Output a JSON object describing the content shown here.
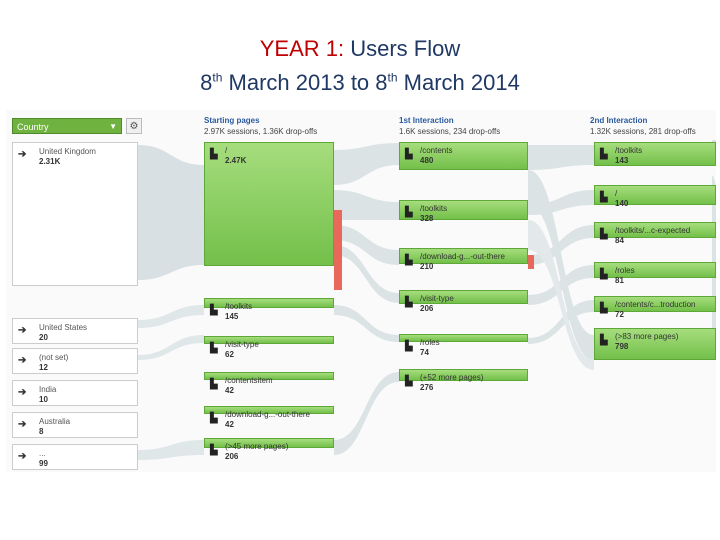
{
  "slide": {
    "line1_year": "YEAR 1:",
    "line1_rest": "Users Flow",
    "line2_a": "8",
    "line2_sup1": "th",
    "line2_b": "March 2013 to 8",
    "line2_sup2": "th",
    "line2_c": "March 2014"
  },
  "controls": {
    "dimension": "Country",
    "caret": "▼",
    "gear": "⚙"
  },
  "columns": [
    {
      "title": "Starting pages",
      "sub": "2.97K sessions, 1.36K drop-offs"
    },
    {
      "title": "1st Interaction",
      "sub": "1.6K sessions, 234 drop-offs"
    },
    {
      "title": "2nd Interaction",
      "sub": "1.32K sessions, 281 drop-offs"
    }
  ],
  "countries": [
    {
      "name": "United Kingdom",
      "value": "2.31K"
    },
    {
      "name": "United States",
      "value": "20"
    },
    {
      "name": "(not set)",
      "value": "12"
    },
    {
      "name": "India",
      "value": "10"
    },
    {
      "name": "Australia",
      "value": "8"
    },
    {
      "name": "...",
      "value": "99"
    }
  ],
  "starting_pages": [
    {
      "name": "/",
      "value": "2.47K"
    },
    {
      "name": "/toolkits",
      "value": "145"
    },
    {
      "name": "/visit-type",
      "value": "62"
    },
    {
      "name": "/contentsitem",
      "value": "42"
    },
    {
      "name": "/download-g...-out-there",
      "value": "42"
    },
    {
      "name": "(>45 more pages)",
      "value": "206"
    }
  ],
  "first_interaction": [
    {
      "name": "/contents",
      "value": "480"
    },
    {
      "name": "/toolkits",
      "value": "328"
    },
    {
      "name": "/download-g...-out-there",
      "value": "210"
    },
    {
      "name": "/visit-type",
      "value": "206"
    },
    {
      "name": "/roles",
      "value": "74"
    },
    {
      "name": "(+52 more pages)",
      "value": "276"
    }
  ],
  "second_interaction": [
    {
      "name": "/toolkits",
      "value": "143"
    },
    {
      "name": "/",
      "value": "140"
    },
    {
      "name": "/toolkits/...c-expected",
      "value": "84"
    },
    {
      "name": "/roles",
      "value": "81"
    },
    {
      "name": "/contents/c...troduction",
      "value": "72"
    },
    {
      "name": "(>83 more pages)",
      "value": "798"
    }
  ],
  "icons": {
    "arrow": "arrow-right-icon",
    "page": "page-icon"
  },
  "colors": {
    "node": "#7cc550",
    "drop": "#e8695c",
    "title_red": "#c00000",
    "title_blue": "#1f3864"
  }
}
